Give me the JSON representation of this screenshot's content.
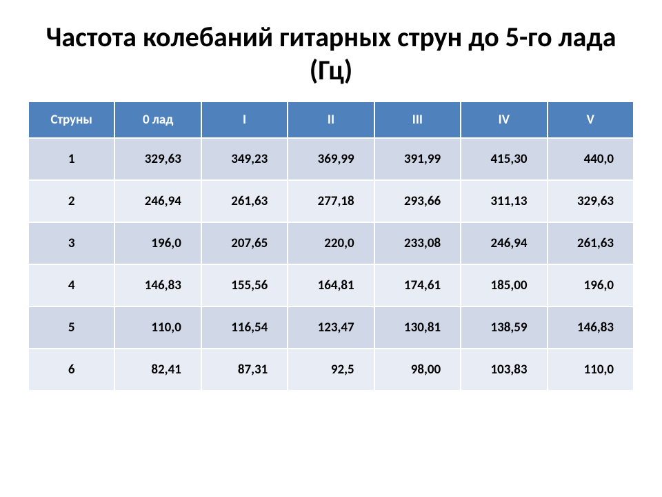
{
  "title": "Частота колебаний гитарных струн до 5-го лада (Гц)",
  "table": {
    "columns": [
      "Струны",
      "0 лад",
      "I",
      "II",
      "III",
      "IV",
      "V"
    ],
    "header_bg": "#4f81bd",
    "header_text_color": "#ffffff",
    "row_odd_bg": "#d0d8e8",
    "row_even_bg": "#e8ecf4",
    "border_color": "#ffffff",
    "font_size": 19,
    "rows": [
      [
        "1",
        "329,63",
        "349,23",
        "369,99",
        "391,99",
        "415,30",
        "440,0"
      ],
      [
        "2",
        "246,94",
        "261,63",
        "277,18",
        "293,66",
        "311,13",
        "329,63"
      ],
      [
        "3",
        "196,0",
        "207,65",
        "220,0",
        "233,08",
        "246,94",
        "261,63"
      ],
      [
        "4",
        "146,83",
        "155,56",
        "164,81",
        "174,61",
        "185,00",
        "196,0"
      ],
      [
        "5",
        "110,0",
        "116,54",
        "123,47",
        "130,81",
        "138,59",
        "146,83"
      ],
      [
        "6",
        "82,41",
        "87,31",
        "92,5",
        "98,00",
        "103,83",
        "110,0"
      ]
    ]
  }
}
